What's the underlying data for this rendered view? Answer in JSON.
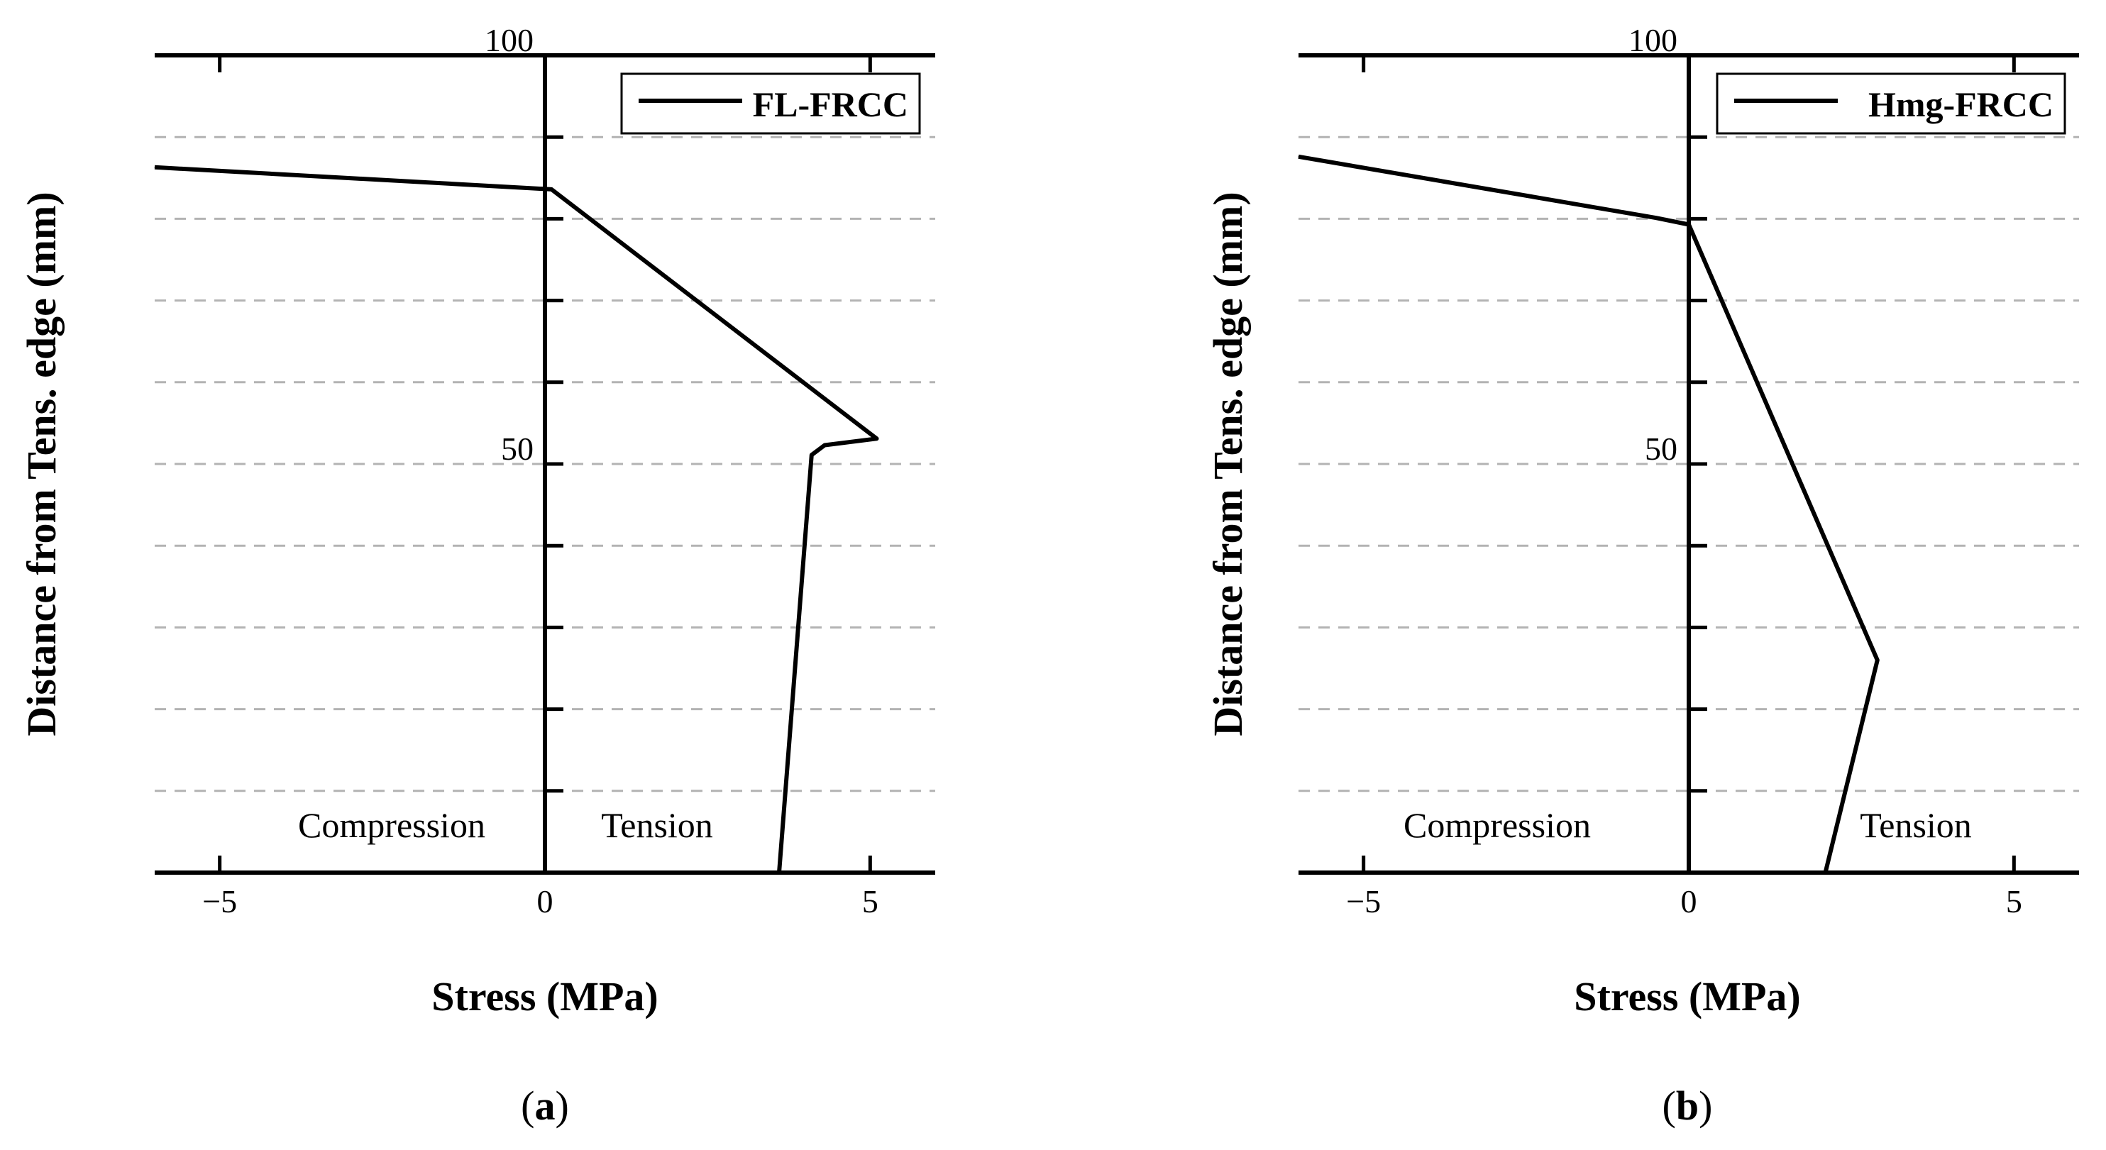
{
  "chart_data": [
    {
      "type": "line",
      "panel_label_open": "(",
      "panel_label_letter": "a",
      "panel_label_close": ")",
      "xlabel": "Stress (MPa)",
      "ylabel": "Distance from Tens. edge (mm)",
      "xlim": [
        -6,
        6
      ],
      "ylim": [
        0,
        100
      ],
      "x_ticks": [
        -5,
        0,
        5
      ],
      "x_tick_labels": [
        "−5",
        "0",
        "5"
      ],
      "y_minor_ticks": [
        10,
        20,
        30,
        40,
        50,
        60,
        70,
        80,
        90
      ],
      "y_tick_labels": [
        {
          "value": 50,
          "label": "50"
        },
        {
          "value": 100,
          "label": "100"
        }
      ],
      "grid": "horizontal dashed",
      "legend": {
        "position": "top-right",
        "entries": [
          "FL-FRCC"
        ]
      },
      "annotations": {
        "compression": "Compression",
        "tension": "Tension"
      },
      "series": [
        {
          "name": "FL-FRCC",
          "color": "#000000",
          "points": [
            [
              -6.0,
              86.3
            ],
            [
              0.1,
              83.6
            ],
            [
              5.1,
              53.1
            ],
            [
              4.3,
              52.3
            ],
            [
              4.1,
              51.1
            ],
            [
              3.6,
              0.0
            ]
          ]
        }
      ]
    },
    {
      "type": "line",
      "panel_label_open": "(",
      "panel_label_letter": "b",
      "panel_label_close": ")",
      "xlabel": "Stress (MPa)",
      "ylabel": "Distance from Tens. edge (mm)",
      "xlim": [
        -6,
        6
      ],
      "ylim": [
        0,
        100
      ],
      "x_ticks": [
        -5,
        0,
        5
      ],
      "x_tick_labels": [
        "−5",
        "0",
        "5"
      ],
      "y_minor_ticks": [
        10,
        20,
        30,
        40,
        50,
        60,
        70,
        80,
        90
      ],
      "y_tick_labels": [
        {
          "value": 50,
          "label": "50"
        },
        {
          "value": 100,
          "label": "100"
        }
      ],
      "grid": "horizontal dashed",
      "legend": {
        "position": "top-right",
        "entries": [
          "Hmg-FRCC"
        ]
      },
      "annotations": {
        "compression": "Compression",
        "tension": "Tension"
      },
      "series": [
        {
          "name": "Hmg-FRCC",
          "color": "#000000",
          "points": [
            [
              -6.0,
              87.6
            ],
            [
              -0.5,
              80.1
            ],
            [
              0.0,
              79.3
            ],
            [
              2.9,
              26.0
            ],
            [
              2.1,
              0.0
            ]
          ]
        }
      ]
    }
  ]
}
